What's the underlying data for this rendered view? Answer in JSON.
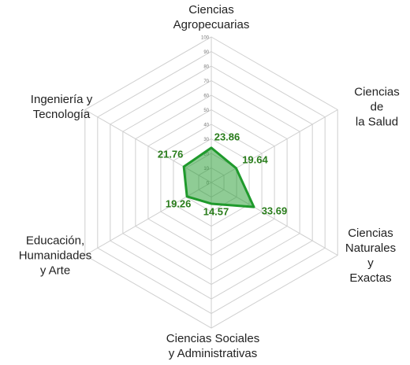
{
  "chart_data": {
    "type": "radar",
    "categories": [
      "Ciencias\nAgropecuarias",
      "Ciencias de\nla Salud",
      "Ciencias\nNaturales\ny Exactas",
      "Ciencias Sociales\ny Administrativas",
      "Educación,\nHumanidades\ny Arte",
      "Ingeniería y\nTecnología"
    ],
    "series": [
      {
        "color": "#1f9a2c",
        "values": [
          23.86,
          19.64,
          33.69,
          14.57,
          19.26,
          21.76
        ]
      }
    ],
    "ylim": [
      0,
      100
    ],
    "yticks": [
      0,
      10,
      20,
      30,
      40,
      50,
      60,
      70,
      80,
      90,
      100
    ],
    "grid": true
  }
}
